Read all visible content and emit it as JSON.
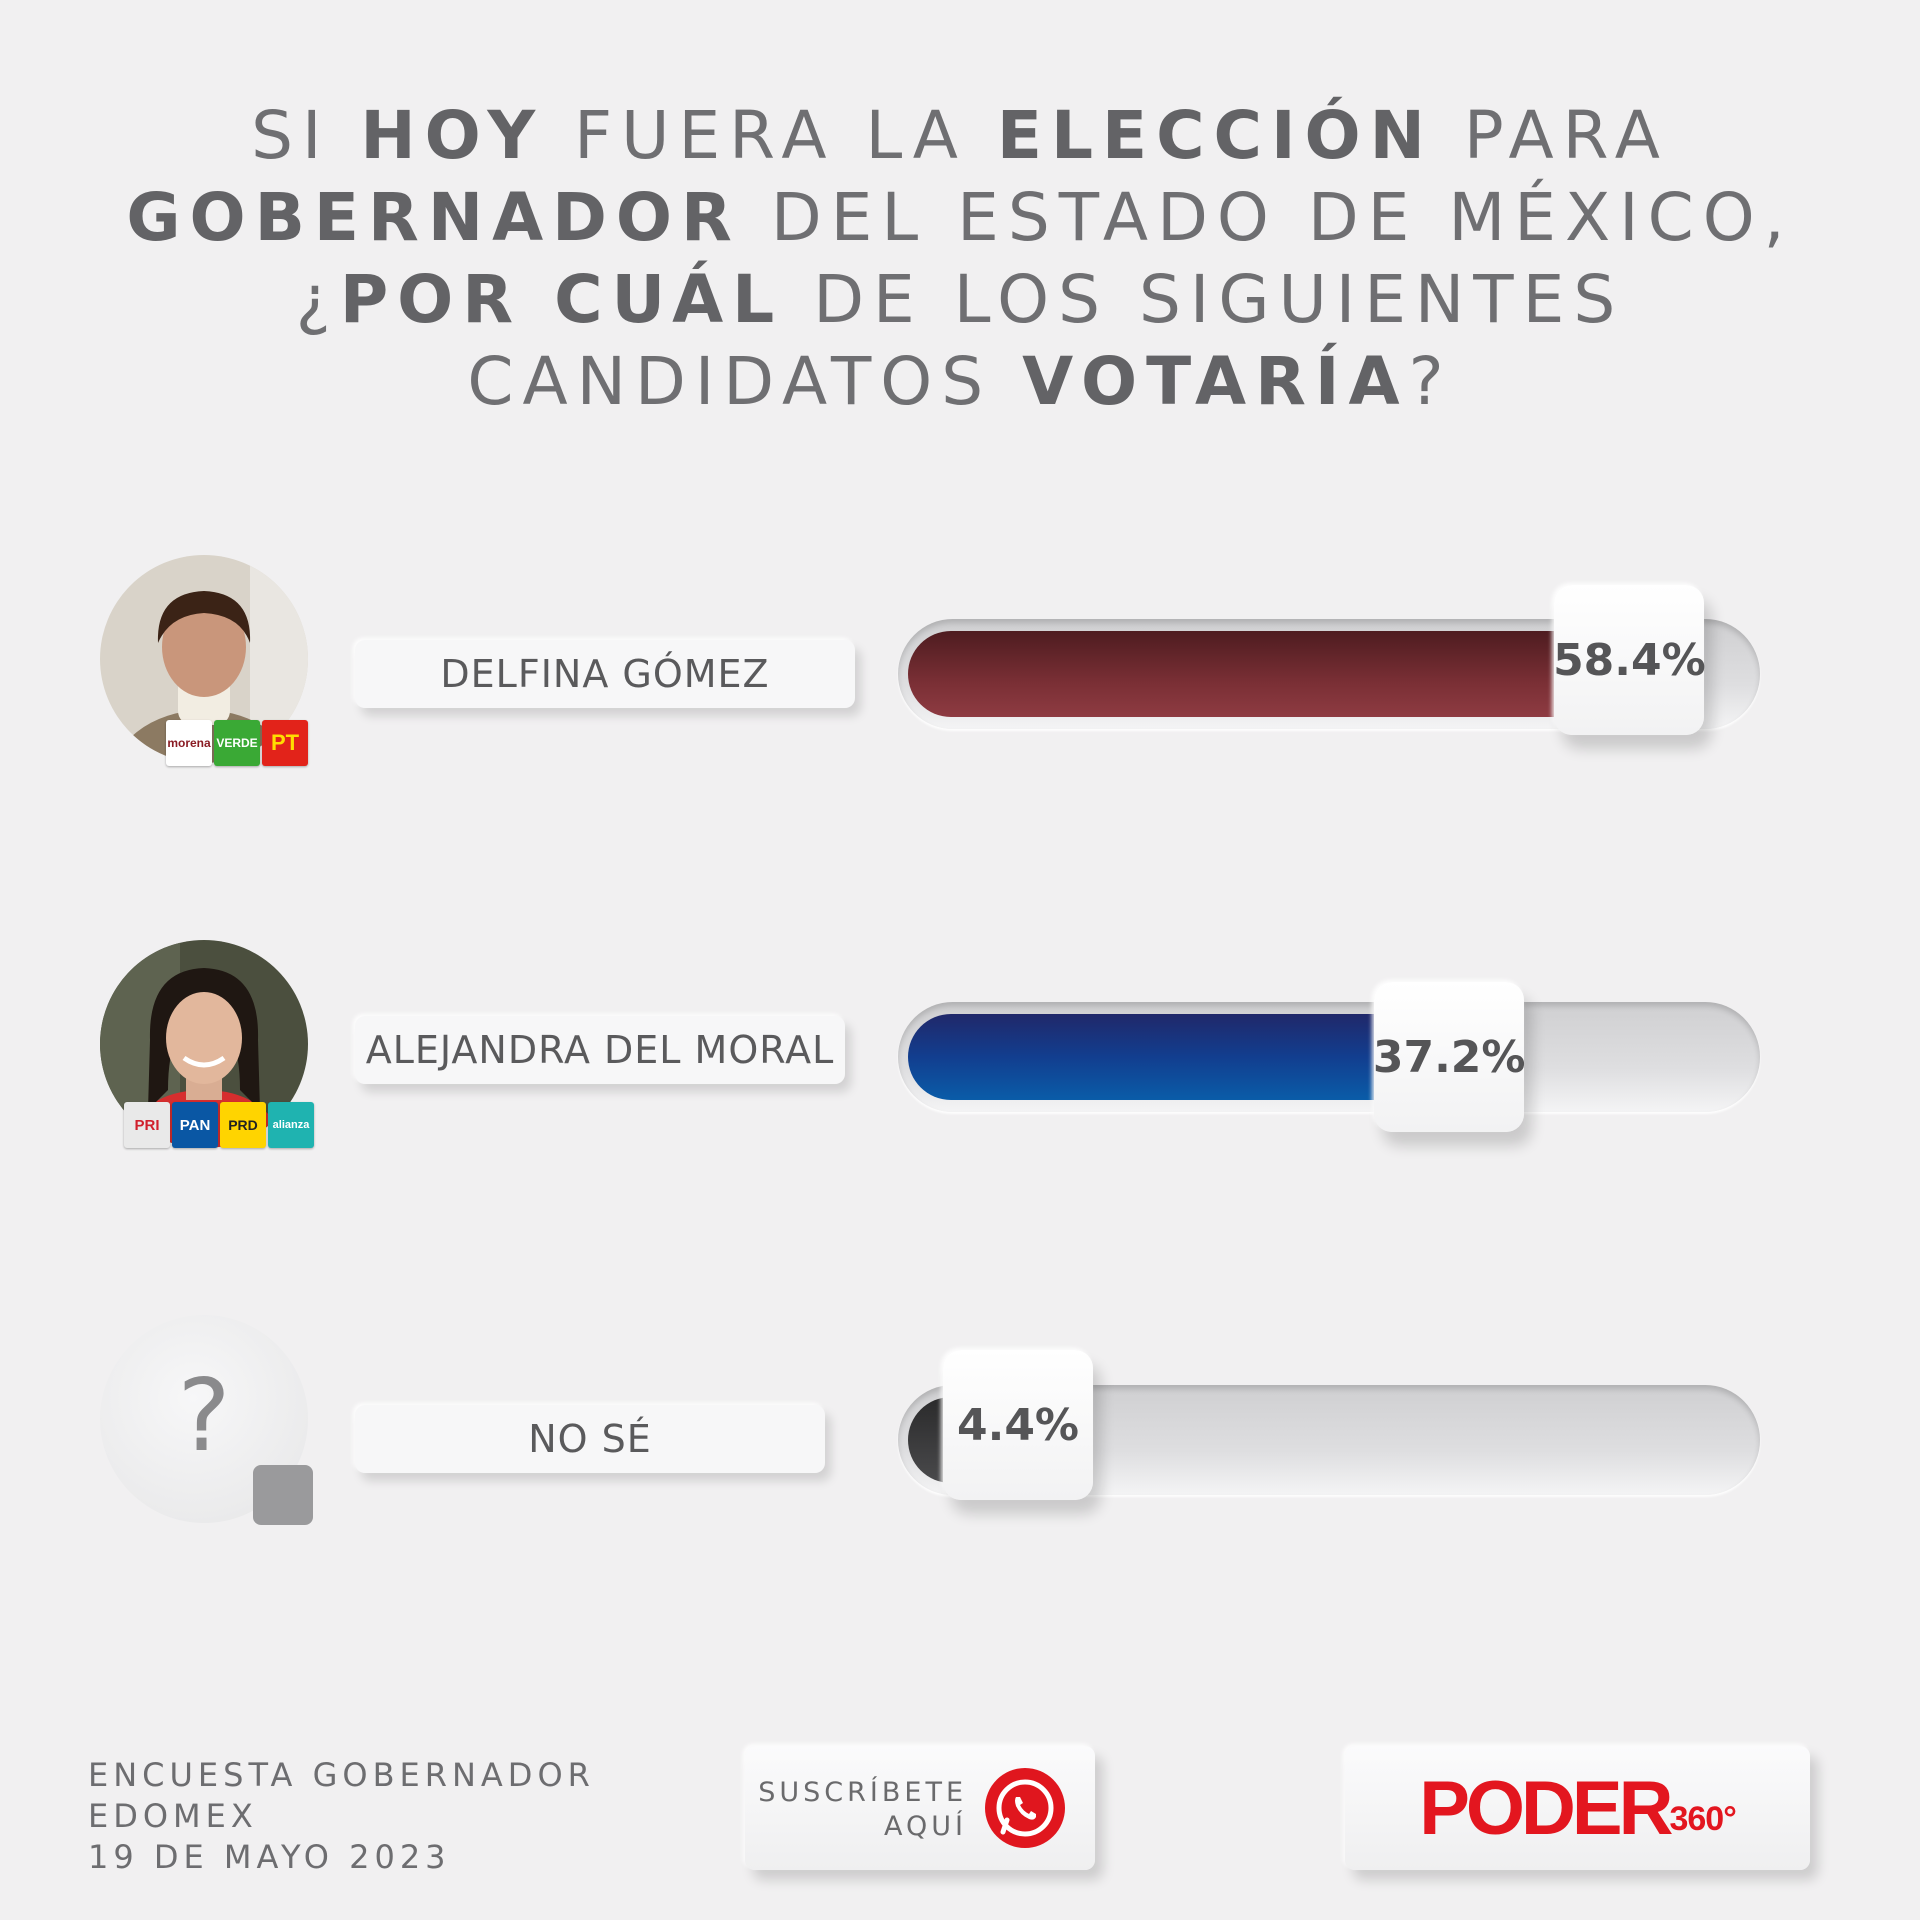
{
  "title": {
    "parts": [
      {
        "t": "SI ",
        "b": false
      },
      {
        "t": "HOY",
        "b": true
      },
      {
        "t": " FUERA LA ",
        "b": false
      },
      {
        "t": "ELECCIÓN",
        "b": true
      },
      {
        "t": " PARA",
        "b": false
      },
      {
        "br": true
      },
      {
        "t": "GOBERNADOR",
        "b": true
      },
      {
        "t": " DEL ESTADO DE MÉXICO,",
        "b": false
      },
      {
        "br": true
      },
      {
        "t": "¿",
        "b": false
      },
      {
        "t": "POR CUÁL",
        "b": true
      },
      {
        "t": " DE LOS SIGUIENTES",
        "b": false
      },
      {
        "br": true
      },
      {
        "t": "CANDIDATOS ",
        "b": false
      },
      {
        "t": "VOTARÍA",
        "b": true
      },
      {
        "t": "?",
        "b": false
      }
    ]
  },
  "chart_data": {
    "type": "bar",
    "orientation": "horizontal",
    "categories": [
      "DELFINA GÓMEZ",
      "ALEJANDRA DEL MORAL",
      "NO SÉ"
    ],
    "values": [
      58.4,
      37.2,
      4.4
    ],
    "labels": [
      "58.4%",
      "37.2%",
      "4.4%"
    ],
    "xlim": [
      0,
      100
    ],
    "colors": [
      "#7a2f35",
      "#1c3f8a",
      "#3a3a3c"
    ],
    "grid": false
  },
  "candidates": [
    {
      "name": "DELFINA GÓMEZ",
      "label": "58.4%",
      "logos": [
        {
          "text": "morena",
          "bg": "#ffffff",
          "fg": "#8a1c24"
        },
        {
          "text": "VERDE",
          "bg": "#3aa935",
          "fg": "#ffffff"
        },
        {
          "text": "PT",
          "bg": "#e2231a",
          "fg": "#ffdd00"
        }
      ]
    },
    {
      "name": "ALEJANDRA DEL MORAL",
      "label": "37.2%",
      "logos": [
        {
          "text": "PRI",
          "bg": "#e9e9e9",
          "fg": "#d1202d"
        },
        {
          "text": "PAN",
          "bg": "#0a57a4",
          "fg": "#ffffff"
        },
        {
          "text": "PRD",
          "bg": "#ffd400",
          "fg": "#222222"
        },
        {
          "text": "alianza",
          "bg": "#1fb3b0",
          "fg": "#ffffff"
        }
      ]
    },
    {
      "name": "NO SÉ",
      "label": "4.4%",
      "placeholder": "?"
    }
  ],
  "footer": {
    "survey_line1": "ENCUESTA GOBERNADOR",
    "survey_line2": "EDOMEX",
    "date": "19 DE MAYO 2023",
    "subscribe_line1": "SUSCRÍBETE",
    "subscribe_line2": "AQUÍ",
    "whatsapp_icon": "whatsapp-icon",
    "brand": "PODER",
    "brand_suffix": "360°"
  }
}
